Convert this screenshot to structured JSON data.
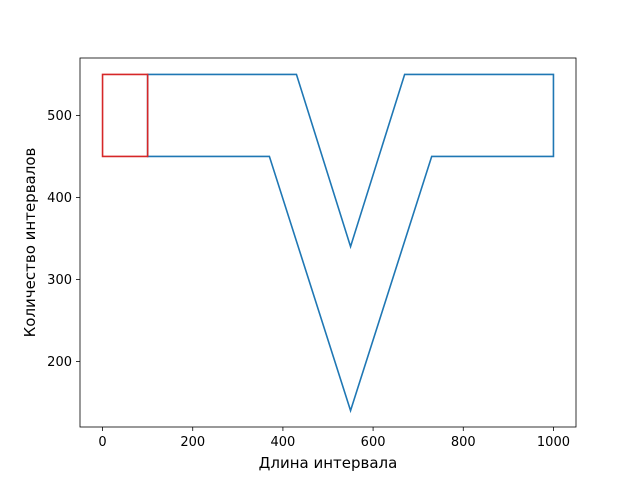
{
  "chart_data": {
    "type": "line",
    "title": "",
    "xlabel": "Длина интервала",
    "ylabel": "Количество интервалов",
    "xlim": [
      -50,
      1050
    ],
    "ylim": [
      120,
      570
    ],
    "xticks": [
      0,
      200,
      400,
      600,
      800,
      1000
    ],
    "yticks": [
      200,
      300,
      400,
      500
    ],
    "grid": false,
    "series": [
      {
        "color": "#1f77b4",
        "closed": true,
        "x": [
          100,
          430,
          550,
          670,
          1000,
          1000,
          730,
          550,
          370,
          100
        ],
        "y": [
          550,
          550,
          340,
          550,
          550,
          450,
          450,
          140,
          450,
          450
        ]
      },
      {
        "color": "#d62728",
        "closed": true,
        "x": [
          0,
          100,
          100,
          0
        ],
        "y": [
          550,
          550,
          450,
          450
        ]
      }
    ]
  }
}
